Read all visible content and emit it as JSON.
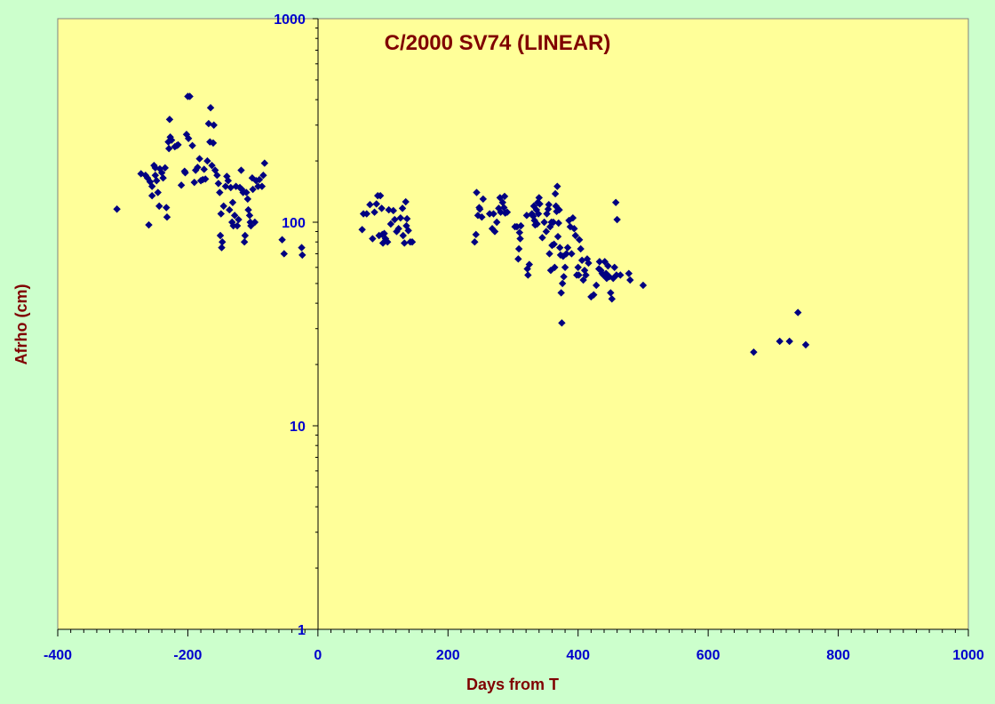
{
  "chart_data": {
    "type": "scatter",
    "title": "C/2000 SV74 (LINEAR)",
    "xlabel": "Days from T",
    "ylabel": "Afrho (cm)",
    "xlim": [
      -400,
      1000
    ],
    "ylim": [
      1,
      1000
    ],
    "yscale": "log",
    "x_ticks": [
      "-400",
      "-200",
      "0",
      "200",
      "400",
      "600",
      "800",
      "1000"
    ],
    "y_ticks": [
      "1",
      "10",
      "100",
      "1000"
    ],
    "grid": false,
    "colors": {
      "page_bg": "#ccffcc",
      "plot_bg": "#ffff99",
      "marker": "#000080",
      "title": "#800000",
      "tick_labels": "#0000cc"
    },
    "marker": "diamond",
    "points": [
      [
        -309,
        116
      ],
      [
        -272,
        173
      ],
      [
        -265,
        170
      ],
      [
        -262,
        165
      ],
      [
        -260,
        97
      ],
      [
        -258,
        158
      ],
      [
        -255,
        150
      ],
      [
        -255,
        135
      ],
      [
        -252,
        190
      ],
      [
        -250,
        185
      ],
      [
        -250,
        170
      ],
      [
        -248,
        160
      ],
      [
        -246,
        140
      ],
      [
        -244,
        120
      ],
      [
        -243,
        183
      ],
      [
        -240,
        175
      ],
      [
        -238,
        165
      ],
      [
        -235,
        185
      ],
      [
        -233,
        118
      ],
      [
        -232,
        106
      ],
      [
        -230,
        248
      ],
      [
        -229,
        230
      ],
      [
        -228,
        320
      ],
      [
        -227,
        262
      ],
      [
        -225,
        253
      ],
      [
        -220,
        235
      ],
      [
        -217,
        238
      ],
      [
        -215,
        240
      ],
      [
        -210,
        152
      ],
      [
        -205,
        178
      ],
      [
        -204,
        175
      ],
      [
        -202,
        270
      ],
      [
        -200,
        415
      ],
      [
        -199,
        258
      ],
      [
        -197,
        415
      ],
      [
        -193,
        238
      ],
      [
        -190,
        157
      ],
      [
        -188,
        180
      ],
      [
        -185,
        186
      ],
      [
        -182,
        205
      ],
      [
        -180,
        160
      ],
      [
        -177,
        162
      ],
      [
        -175,
        182
      ],
      [
        -173,
        163
      ],
      [
        -170,
        200
      ],
      [
        -168,
        305
      ],
      [
        -166,
        248
      ],
      [
        -165,
        365
      ],
      [
        -163,
        190
      ],
      [
        -161,
        245
      ],
      [
        -160,
        300
      ],
      [
        -158,
        180
      ],
      [
        -155,
        170
      ],
      [
        -153,
        155
      ],
      [
        -151,
        140
      ],
      [
        -150,
        86
      ],
      [
        -149,
        110
      ],
      [
        -148,
        75
      ],
      [
        -147,
        80
      ],
      [
        -145,
        120
      ],
      [
        -142,
        150
      ],
      [
        -140,
        168
      ],
      [
        -138,
        160
      ],
      [
        -136,
        115
      ],
      [
        -134,
        148
      ],
      [
        -132,
        100
      ],
      [
        -131,
        125
      ],
      [
        -130,
        96
      ],
      [
        -128,
        108
      ],
      [
        -126,
        150
      ],
      [
        -124,
        96
      ],
      [
        -122,
        103
      ],
      [
        -120,
        148
      ],
      [
        -118,
        180
      ],
      [
        -117,
        145
      ],
      [
        -115,
        140
      ],
      [
        -113,
        80
      ],
      [
        -112,
        86
      ],
      [
        -110,
        140
      ],
      [
        -108,
        130
      ],
      [
        -107,
        115
      ],
      [
        -105,
        108
      ],
      [
        -104,
        100
      ],
      [
        -103,
        96
      ],
      [
        -101,
        165
      ],
      [
        -100,
        145
      ],
      [
        -97,
        100
      ],
      [
        -95,
        160
      ],
      [
        -92,
        150
      ],
      [
        -90,
        162
      ],
      [
        -86,
        150
      ],
      [
        -84,
        170
      ],
      [
        -82,
        195
      ],
      [
        -55,
        82
      ],
      [
        -52,
        70
      ],
      [
        -25,
        75
      ],
      [
        -24,
        69
      ],
      [
        68,
        92
      ],
      [
        70,
        110
      ],
      [
        75,
        110
      ],
      [
        80,
        122
      ],
      [
        84,
        83
      ],
      [
        87,
        112
      ],
      [
        90,
        123
      ],
      [
        92,
        135
      ],
      [
        94,
        86
      ],
      [
        96,
        135
      ],
      [
        98,
        117
      ],
      [
        99,
        87
      ],
      [
        100,
        79
      ],
      [
        102,
        88
      ],
      [
        104,
        83
      ],
      [
        107,
        80
      ],
      [
        109,
        115
      ],
      [
        112,
        98
      ],
      [
        116,
        114
      ],
      [
        118,
        103
      ],
      [
        121,
        90
      ],
      [
        124,
        93
      ],
      [
        127,
        105
      ],
      [
        130,
        117
      ],
      [
        131,
        86
      ],
      [
        133,
        79
      ],
      [
        135,
        126
      ],
      [
        136,
        96
      ],
      [
        137,
        104
      ],
      [
        139,
        91
      ],
      [
        142,
        80
      ],
      [
        145,
        80
      ],
      [
        241,
        80
      ],
      [
        243,
        87
      ],
      [
        244,
        140
      ],
      [
        246,
        108
      ],
      [
        248,
        118
      ],
      [
        249,
        116
      ],
      [
        252,
        106
      ],
      [
        254,
        130
      ],
      [
        264,
        110
      ],
      [
        268,
        93
      ],
      [
        270,
        110
      ],
      [
        272,
        90
      ],
      [
        275,
        100
      ],
      [
        278,
        117
      ],
      [
        280,
        132
      ],
      [
        281,
        112
      ],
      [
        284,
        125
      ],
      [
        286,
        118
      ],
      [
        287,
        134
      ],
      [
        288,
        111
      ],
      [
        291,
        112
      ],
      [
        303,
        95
      ],
      [
        306,
        95
      ],
      [
        308,
        66
      ],
      [
        309,
        74
      ],
      [
        310,
        89
      ],
      [
        311,
        83
      ],
      [
        312,
        96
      ],
      [
        321,
        108
      ],
      [
        322,
        59
      ],
      [
        323,
        55
      ],
      [
        325,
        62
      ],
      [
        329,
        110
      ],
      [
        331,
        107
      ],
      [
        332,
        120
      ],
      [
        333,
        102
      ],
      [
        334,
        97
      ],
      [
        336,
        115
      ],
      [
        337,
        98
      ],
      [
        338,
        125
      ],
      [
        339,
        110
      ],
      [
        340,
        132
      ],
      [
        341,
        123
      ],
      [
        345,
        84
      ],
      [
        348,
        100
      ],
      [
        351,
        90
      ],
      [
        352,
        110
      ],
      [
        354,
        116
      ],
      [
        355,
        122
      ],
      [
        356,
        70
      ],
      [
        357,
        95
      ],
      [
        358,
        58
      ],
      [
        359,
        100
      ],
      [
        360,
        77
      ],
      [
        362,
        100
      ],
      [
        363,
        78
      ],
      [
        364,
        60
      ],
      [
        365,
        138
      ],
      [
        366,
        120
      ],
      [
        367,
        113
      ],
      [
        368,
        150
      ],
      [
        369,
        85
      ],
      [
        370,
        99
      ],
      [
        371,
        115
      ],
      [
        372,
        75
      ],
      [
        373,
        69
      ],
      [
        374,
        45
      ],
      [
        375,
        32
      ],
      [
        376,
        50
      ],
      [
        377,
        68
      ],
      [
        378,
        54
      ],
      [
        380,
        60
      ],
      [
        382,
        70
      ],
      [
        384,
        75
      ],
      [
        386,
        102
      ],
      [
        388,
        95
      ],
      [
        390,
        70
      ],
      [
        392,
        105
      ],
      [
        394,
        93
      ],
      [
        396,
        86
      ],
      [
        398,
        55
      ],
      [
        400,
        60
      ],
      [
        401,
        55
      ],
      [
        402,
        82
      ],
      [
        404,
        74
      ],
      [
        406,
        65
      ],
      [
        408,
        52
      ],
      [
        410,
        58
      ],
      [
        412,
        55
      ],
      [
        414,
        66
      ],
      [
        416,
        63
      ],
      [
        420,
        43
      ],
      [
        424,
        44
      ],
      [
        428,
        49
      ],
      [
        432,
        59
      ],
      [
        433,
        64
      ],
      [
        435,
        58
      ],
      [
        437,
        56
      ],
      [
        439,
        55
      ],
      [
        441,
        64
      ],
      [
        443,
        56
      ],
      [
        444,
        53
      ],
      [
        446,
        61
      ],
      [
        448,
        54
      ],
      [
        450,
        45
      ],
      [
        452,
        42
      ],
      [
        454,
        53
      ],
      [
        456,
        60
      ],
      [
        458,
        125
      ],
      [
        459,
        55
      ],
      [
        460,
        103
      ],
      [
        465,
        55
      ],
      [
        478,
        56
      ],
      [
        480,
        52
      ],
      [
        500,
        49
      ],
      [
        670,
        23
      ],
      [
        710,
        26
      ],
      [
        725,
        26
      ],
      [
        738,
        36
      ],
      [
        750,
        25
      ]
    ]
  }
}
